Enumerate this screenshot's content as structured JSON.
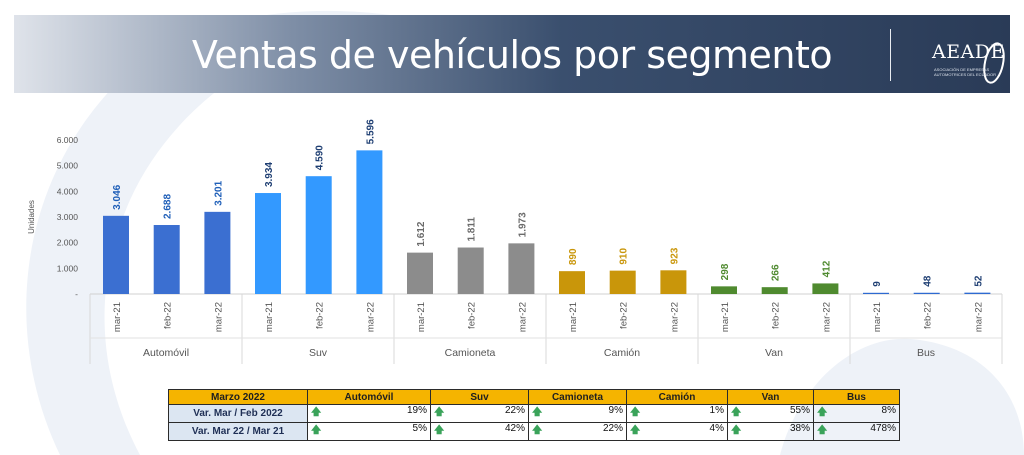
{
  "title": "Ventas de vehículos por segmento",
  "logo": {
    "name": "AEADE",
    "subtitle": "ASOCIACIÓN DE EMPRESAS AUTOMOTRICES DEL ECUADOR"
  },
  "colors": {
    "automovil": "#3b6fd1",
    "suv": "#3399ff",
    "camioneta": "#8c8c8c",
    "camion": "#c9960a",
    "van": "#4f8a2f",
    "bus": "#2e6ad1"
  },
  "chart_data": {
    "type": "bar",
    "ylabel": "Unidades",
    "ylim": [
      0,
      6000
    ],
    "yticks": [
      "-",
      "1.000",
      "2.000",
      "3.000",
      "4.000",
      "5.000",
      "6.000"
    ],
    "grid": false,
    "groups": [
      {
        "name": "Automóvil",
        "color": "#3b6fd1",
        "label_color": "#1f5fb8",
        "categories": [
          "mar-21",
          "feb-22",
          "mar-22"
        ],
        "values": [
          3046,
          2688,
          3201
        ],
        "labels": [
          "3.046",
          "2.688",
          "3.201"
        ]
      },
      {
        "name": "Suv",
        "color": "#3399ff",
        "label_color": "#1f3f73",
        "categories": [
          "mar-21",
          "feb-22",
          "mar-22"
        ],
        "values": [
          3934,
          4590,
          5596
        ],
        "labels": [
          "3.934",
          "4.590",
          "5.596"
        ]
      },
      {
        "name": "Camioneta",
        "color": "#8c8c8c",
        "label_color": "#6b6b6b",
        "categories": [
          "mar-21",
          "feb-22",
          "mar-22"
        ],
        "values": [
          1612,
          1811,
          1973
        ],
        "labels": [
          "1.612",
          "1.811",
          "1.973"
        ]
      },
      {
        "name": "Camión",
        "color": "#c9960a",
        "label_color": "#c9960a",
        "categories": [
          "mar-21",
          "feb-22",
          "mar-22"
        ],
        "values": [
          890,
          910,
          923
        ],
        "labels": [
          "890",
          "910",
          "923"
        ]
      },
      {
        "name": "Van",
        "color": "#4f8a2f",
        "label_color": "#4f8a2f",
        "categories": [
          "mar-21",
          "feb-22",
          "mar-22"
        ],
        "values": [
          298,
          266,
          412
        ],
        "labels": [
          "298",
          "266",
          "412"
        ]
      },
      {
        "name": "Bus",
        "color": "#2e6ad1",
        "label_color": "#1f3f73",
        "categories": [
          "mar-21",
          "feb-22",
          "mar-22"
        ],
        "values": [
          9,
          48,
          52
        ],
        "labels": [
          "9",
          "48",
          "52"
        ]
      }
    ]
  },
  "table": {
    "headers": [
      "Marzo 2022",
      "Automóvil",
      "Suv",
      "Camioneta",
      "Camión",
      "Van",
      "Bus"
    ],
    "rows": [
      {
        "label": "Var. Mar / Feb 2022",
        "cells": [
          "19%",
          "22%",
          "9%",
          "1%",
          "55%",
          "8%"
        ]
      },
      {
        "label": "Var. Mar 22 / Mar 21",
        "cells": [
          "5%",
          "42%",
          "22%",
          "4%",
          "38%",
          "478%"
        ]
      }
    ],
    "arrow_icon": "up-arrow-icon"
  }
}
